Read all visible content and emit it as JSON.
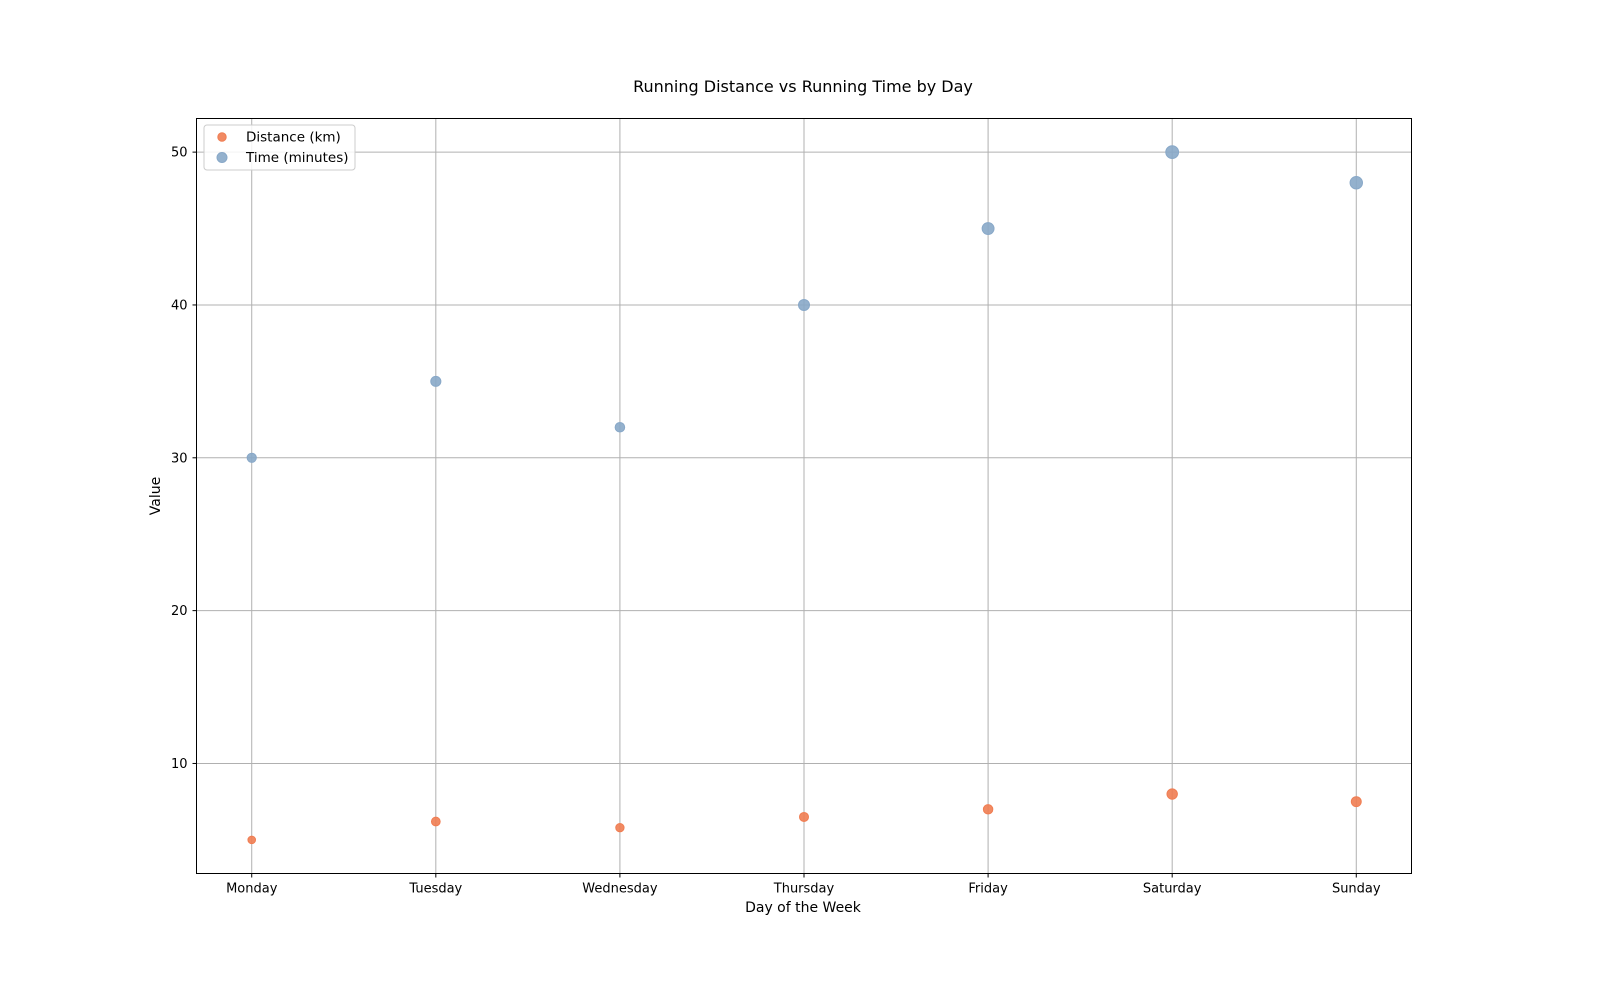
{
  "chart_data": {
    "type": "scatter",
    "title": "Running Distance vs Running Time by Day",
    "xlabel": "Day of the Week",
    "ylabel": "Value",
    "categories": [
      "Monday",
      "Tuesday",
      "Wednesday",
      "Thursday",
      "Friday",
      "Saturday",
      "Sunday"
    ],
    "ylim": [
      2.8,
      52.2
    ],
    "yticks": [
      10,
      20,
      30,
      40,
      50
    ],
    "grid": true,
    "legend_position": "top-left",
    "series": [
      {
        "name": "Distance (km)",
        "color": "#f07d52",
        "values": [
          5.0,
          6.2,
          5.8,
          6.5,
          7.0,
          8.0,
          7.5
        ]
      },
      {
        "name": "Time (minutes)",
        "color": "#88a8c8",
        "values": [
          30,
          35,
          32,
          40,
          45,
          50,
          48
        ]
      }
    ]
  }
}
